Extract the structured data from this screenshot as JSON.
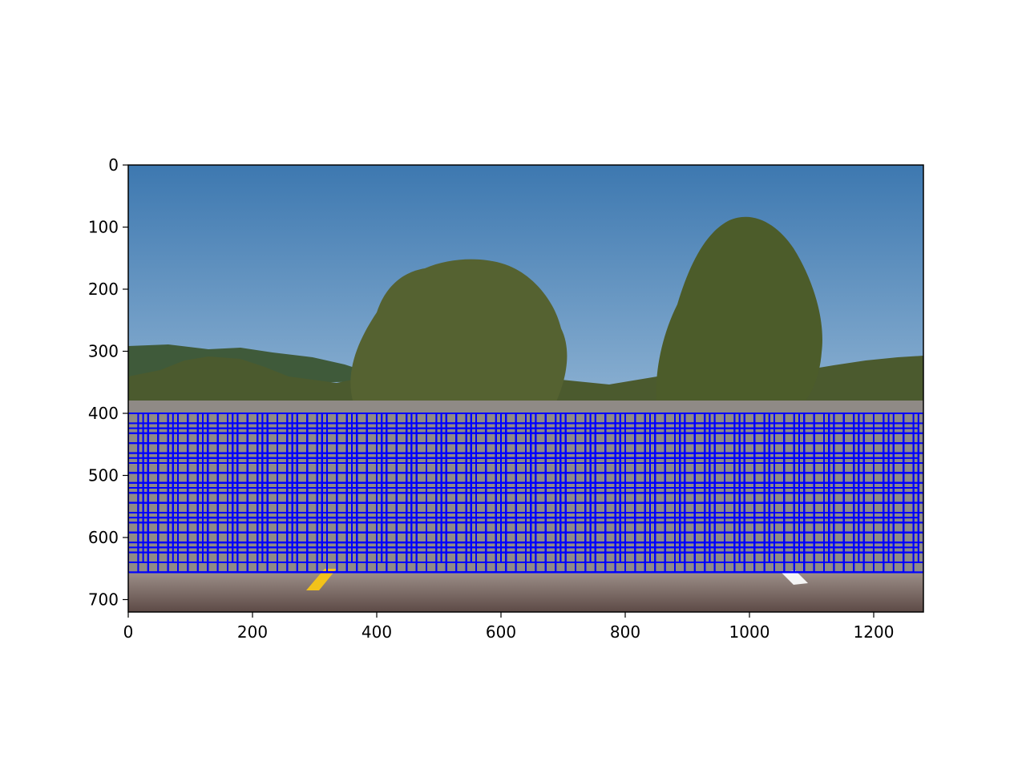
{
  "chart_data": {
    "type": "image",
    "image_description_free": true,
    "image_size": [
      1280,
      720
    ],
    "xlim": [
      0,
      1280
    ],
    "ylim": [
      720,
      0
    ],
    "y_inverted": true,
    "x_ticks": [
      0,
      200,
      400,
      600,
      800,
      1000,
      1200
    ],
    "x_tick_labels": [
      "0",
      "200",
      "400",
      "600",
      "800",
      "1000",
      "1200"
    ],
    "y_ticks": [
      0,
      100,
      200,
      300,
      400,
      500,
      600,
      700
    ],
    "y_tick_labels": [
      "0",
      "100",
      "200",
      "300",
      "400",
      "500",
      "600",
      "700"
    ],
    "title": "",
    "xlabel": "",
    "ylabel": "",
    "grid": false,
    "overlay": {
      "type": "rectangles",
      "color": "#0000ff",
      "y_range": [
        400,
        656
      ],
      "x_range": [
        0,
        1280
      ],
      "window_sizes": [
        64,
        96,
        128
      ],
      "overlap": 0.75
    }
  },
  "colors": {
    "sky": "#4f86b8",
    "box": "#0000ff",
    "road": "#6e5a55",
    "lane_yellow": "#f2c21a"
  }
}
